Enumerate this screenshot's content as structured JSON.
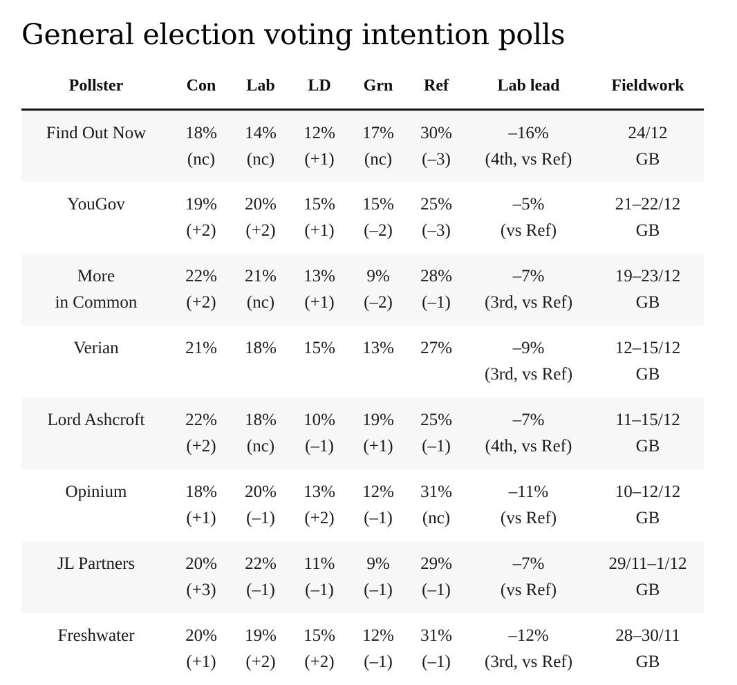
{
  "title": "General election voting intention polls",
  "headers": {
    "pollster": "Pollster",
    "con": "Con",
    "lab": "Lab",
    "ld": "LD",
    "grn": "Grn",
    "ref": "Ref",
    "lab_lead": "Lab lead",
    "fieldwork": "Fieldwork"
  },
  "rows": [
    {
      "pollster": [
        "Find Out Now"
      ],
      "con": [
        "18%",
        "(nc)"
      ],
      "lab": [
        "14%",
        "(nc)"
      ],
      "ld": [
        "12%",
        "(+1)"
      ],
      "grn": [
        "17%",
        "(nc)"
      ],
      "ref": [
        "30%",
        "(–3)"
      ],
      "lab_lead": [
        "–16%",
        "(4th, vs Ref)"
      ],
      "fieldwork": [
        "24/12",
        "GB"
      ]
    },
    {
      "pollster": [
        "YouGov"
      ],
      "con": [
        "19%",
        "(+2)"
      ],
      "lab": [
        "20%",
        "(+2)"
      ],
      "ld": [
        "15%",
        "(+1)"
      ],
      "grn": [
        "15%",
        "(–2)"
      ],
      "ref": [
        "25%",
        "(–3)"
      ],
      "lab_lead": [
        "–5%",
        "(vs Ref)"
      ],
      "fieldwork": [
        "21–22/12",
        "GB"
      ]
    },
    {
      "pollster": [
        "More",
        "in Common"
      ],
      "con": [
        "22%",
        "(+2)"
      ],
      "lab": [
        "21%",
        "(nc)"
      ],
      "ld": [
        "13%",
        "(+1)"
      ],
      "grn": [
        "9%",
        "(–2)"
      ],
      "ref": [
        "28%",
        "(–1)"
      ],
      "lab_lead": [
        "–7%",
        "(3rd, vs Ref)"
      ],
      "fieldwork": [
        "19–23/12",
        "GB"
      ]
    },
    {
      "pollster": [
        "Verian"
      ],
      "con": [
        "21%"
      ],
      "lab": [
        "18%"
      ],
      "ld": [
        "15%"
      ],
      "grn": [
        "13%"
      ],
      "ref": [
        "27%"
      ],
      "lab_lead": [
        "–9%",
        "(3rd, vs Ref)"
      ],
      "fieldwork": [
        "12–15/12",
        "GB"
      ]
    },
    {
      "pollster": [
        "Lord Ashcroft"
      ],
      "con": [
        "22%",
        "(+2)"
      ],
      "lab": [
        "18%",
        "(nc)"
      ],
      "ld": [
        "10%",
        "(–1)"
      ],
      "grn": [
        "19%",
        "(+1)"
      ],
      "ref": [
        "25%",
        "(–1)"
      ],
      "lab_lead": [
        "–7%",
        "(4th, vs Ref)"
      ],
      "fieldwork": [
        "11–15/12",
        "GB"
      ]
    },
    {
      "pollster": [
        "Opinium"
      ],
      "con": [
        "18%",
        "(+1)"
      ],
      "lab": [
        "20%",
        "(–1)"
      ],
      "ld": [
        "13%",
        "(+2)"
      ],
      "grn": [
        "12%",
        "(–1)"
      ],
      "ref": [
        "31%",
        "(nc)"
      ],
      "lab_lead": [
        "–11%",
        "(vs Ref)"
      ],
      "fieldwork": [
        "10–12/12",
        "GB"
      ]
    },
    {
      "pollster": [
        "JL Partners"
      ],
      "con": [
        "20%",
        "(+3)"
      ],
      "lab": [
        "22%",
        "(–1)"
      ],
      "ld": [
        "11%",
        "(–1)"
      ],
      "grn": [
        "9%",
        "(–1)"
      ],
      "ref": [
        "29%",
        "(–1)"
      ],
      "lab_lead": [
        "–7%",
        "(vs Ref)"
      ],
      "fieldwork": [
        "29/11–1/12",
        "GB"
      ]
    },
    {
      "pollster": [
        "Freshwater"
      ],
      "con": [
        "20%",
        "(+1)"
      ],
      "lab": [
        "19%",
        "(+2)"
      ],
      "ld": [
        "15%",
        "(+2)"
      ],
      "grn": [
        "12%",
        "(–1)"
      ],
      "ref": [
        "31%",
        "(–1)"
      ],
      "lab_lead": [
        "–12%",
        "(3rd, vs Ref)"
      ],
      "fieldwork": [
        "28–30/11",
        "GB"
      ]
    }
  ]
}
